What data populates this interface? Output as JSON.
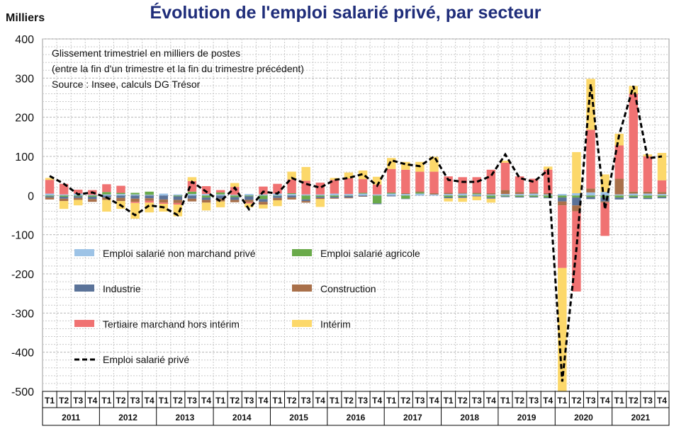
{
  "title": "Évolution de l'emploi salarié privé, par secteur",
  "colors": {
    "non_marchand": "#9dc3e6",
    "agricole": "#6aaa4a",
    "industrie": "#5b7399",
    "construction": "#a9704a",
    "tertiaire": "#f07272",
    "interim": "#fcd86a",
    "total": "#000000",
    "grid": "#c9c9c9",
    "title": "#1f2d7a"
  },
  "chart_data": {
    "type": "bar",
    "stacked": true,
    "title": "Évolution de l'emploi salarié privé, par secteur",
    "ylabel": "Milliers",
    "ylim": [
      -500,
      400
    ],
    "yticks": [
      -500,
      -400,
      -300,
      -200,
      -100,
      0,
      100,
      200,
      300,
      400
    ],
    "grid": true,
    "notes": [
      "Glissement trimestriel en milliers de postes",
      "(entre la fin d'un trimestre et la fin du trimestre précédent)",
      "Source : Insee, calculs DG Trésor"
    ],
    "categories": [
      "T1",
      "T2",
      "T3",
      "T4",
      "T1",
      "T2",
      "T3",
      "T4",
      "T1",
      "T2",
      "T3",
      "T4",
      "T1",
      "T2",
      "T3",
      "T4",
      "T1",
      "T2",
      "T3",
      "T4",
      "T1",
      "T2",
      "T3",
      "T4",
      "T1",
      "T2",
      "T3",
      "T4",
      "T1",
      "T2",
      "T3",
      "T4",
      "T1",
      "T2",
      "T3",
      "T4",
      "T1",
      "T2",
      "T3",
      "T4",
      "T1",
      "T2",
      "T3",
      "T4"
    ],
    "years": [
      "2011",
      "2012",
      "2013",
      "2014",
      "2015",
      "2016",
      "2017",
      "2018",
      "2019",
      "2020",
      "2021"
    ],
    "series": [
      {
        "name": "Emploi salarié non marchand privé",
        "key": "non_marchand",
        "values": [
          5,
          3,
          5,
          2,
          3,
          4,
          3,
          2,
          5,
          3,
          4,
          4,
          3,
          2,
          4,
          3,
          5,
          4,
          3,
          3,
          5,
          4,
          5,
          3,
          5,
          4,
          5,
          3,
          4,
          5,
          3,
          3,
          4,
          4,
          5,
          3,
          4,
          6,
          8,
          9,
          3,
          5,
          5,
          4
        ]
      },
      {
        "name": "Emploi salarié agricole",
        "key": "agricole",
        "values": [
          -2,
          -3,
          -2,
          -3,
          6,
          3,
          4,
          8,
          0,
          -2,
          6,
          -5,
          5,
          -4,
          -2,
          -9,
          -1,
          2,
          -10,
          -3,
          -3,
          -1,
          2,
          -20,
          2,
          -8,
          3,
          0,
          -4,
          -3,
          2,
          -5,
          -2,
          -3,
          -3,
          -5,
          -5,
          -5,
          -4,
          -5,
          -5,
          -4,
          -6,
          -4
        ]
      },
      {
        "name": "Industrie",
        "key": "industrie",
        "values": [
          -3,
          -5,
          -4,
          -6,
          -5,
          -6,
          -8,
          -7,
          -10,
          -9,
          -8,
          -6,
          -8,
          -7,
          -9,
          -7,
          -5,
          -5,
          -4,
          -3,
          -3,
          -4,
          -2,
          -2,
          -2,
          -1,
          0,
          0,
          -3,
          -3,
          -2,
          -3,
          -2,
          -2,
          -2,
          -2,
          -10,
          -20,
          -5,
          -10,
          -5,
          -3,
          -3,
          -3
        ]
      },
      {
        "name": "Construction",
        "key": "construction",
        "values": [
          -5,
          -6,
          -5,
          -7,
          -6,
          -8,
          -8,
          -6,
          -8,
          -8,
          -7,
          -7,
          -7,
          -6,
          -6,
          -7,
          -6,
          -5,
          -4,
          -3,
          -2,
          -2,
          -1,
          0,
          1,
          2,
          3,
          3,
          3,
          2,
          2,
          3,
          10,
          5,
          3,
          3,
          -10,
          -15,
          10,
          -3,
          40,
          5,
          5,
          5
        ]
      },
      {
        "name": "Tertiaire marchand hors intérim",
        "key": "tertiaire",
        "values": [
          35,
          27,
          10,
          12,
          20,
          18,
          -3,
          -5,
          -3,
          -4,
          27,
          20,
          6,
          20,
          -3,
          20,
          25,
          35,
          35,
          30,
          35,
          40,
          35,
          25,
          60,
          60,
          50,
          55,
          42,
          40,
          40,
          60,
          70,
          40,
          35,
          60,
          -160,
          -205,
          150,
          -85,
          85,
          250,
          90,
          30
        ]
      },
      {
        "name": "Intérim",
        "key": "interim",
        "values": [
          5,
          -20,
          -14,
          0,
          -30,
          -20,
          -40,
          -25,
          -20,
          -30,
          10,
          -20,
          -15,
          10,
          -10,
          -10,
          -15,
          20,
          35,
          -20,
          5,
          15,
          22,
          20,
          28,
          20,
          25,
          38,
          -8,
          -10,
          -10,
          -10,
          5,
          0,
          0,
          8,
          -315,
          105,
          130,
          45,
          30,
          20,
          5,
          70
        ]
      }
    ],
    "total": {
      "name": "Emploi salarié privé",
      "values": [
        50,
        30,
        3,
        8,
        -5,
        -25,
        -50,
        -25,
        -30,
        -50,
        35,
        10,
        -15,
        20,
        -35,
        10,
        5,
        45,
        30,
        20,
        40,
        45,
        55,
        25,
        90,
        80,
        75,
        100,
        40,
        35,
        35,
        50,
        105,
        45,
        35,
        65,
        -475,
        -135,
        285,
        -35,
        155,
        280,
        95,
        100
      ]
    }
  }
}
